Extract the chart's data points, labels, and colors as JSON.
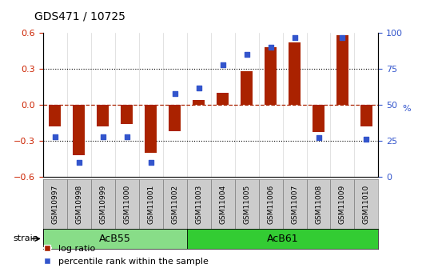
{
  "title": "GDS471 / 10725",
  "samples": [
    "GSM10997",
    "GSM10998",
    "GSM10999",
    "GSM11000",
    "GSM11001",
    "GSM11002",
    "GSM11003",
    "GSM11004",
    "GSM11005",
    "GSM11006",
    "GSM11007",
    "GSM11008",
    "GSM11009",
    "GSM11010"
  ],
  "log_ratio": [
    -0.18,
    -0.42,
    -0.18,
    -0.16,
    -0.4,
    -0.22,
    0.04,
    0.1,
    0.28,
    0.48,
    0.52,
    -0.23,
    0.58,
    -0.18
  ],
  "percentile": [
    28,
    10,
    28,
    28,
    10,
    58,
    62,
    78,
    85,
    90,
    97,
    27,
    97,
    26
  ],
  "strain_groups": [
    {
      "label": "AcB55",
      "start": 0,
      "end": 6,
      "color": "#88dd88"
    },
    {
      "label": "AcB61",
      "start": 6,
      "end": 14,
      "color": "#33cc33"
    }
  ],
  "bar_color": "#aa2200",
  "dot_color": "#3355cc",
  "ylim_left": [
    -0.6,
    0.6
  ],
  "ylim_right": [
    0,
    100
  ],
  "yticks_left": [
    -0.6,
    -0.3,
    0.0,
    0.3,
    0.6
  ],
  "yticks_right": [
    0,
    25,
    50,
    75,
    100
  ],
  "left_tick_color": "#cc2200",
  "right_tick_color": "#3355cc",
  "bar_width": 0.5,
  "legend_items": [
    "log ratio",
    "percentile rank within the sample"
  ],
  "strain_label": "strain",
  "label_bg_color": "#cccccc",
  "label_border_color": "#888888"
}
